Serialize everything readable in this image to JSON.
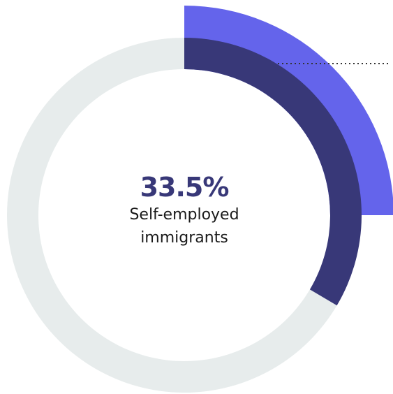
{
  "chart_data": {
    "type": "pie",
    "variant": "donut",
    "value_label": "33.5%",
    "caption_line1": "Self-employed",
    "caption_line2": "immigrants",
    "slices": [
      {
        "value": 33.5,
        "color": "#383878"
      },
      {
        "value": 66.5,
        "color": "#e7ecec"
      }
    ],
    "highlight_value": 25,
    "highlight_color": "#6464eb",
    "leader_color": "#333333",
    "value_color": "#383878"
  }
}
